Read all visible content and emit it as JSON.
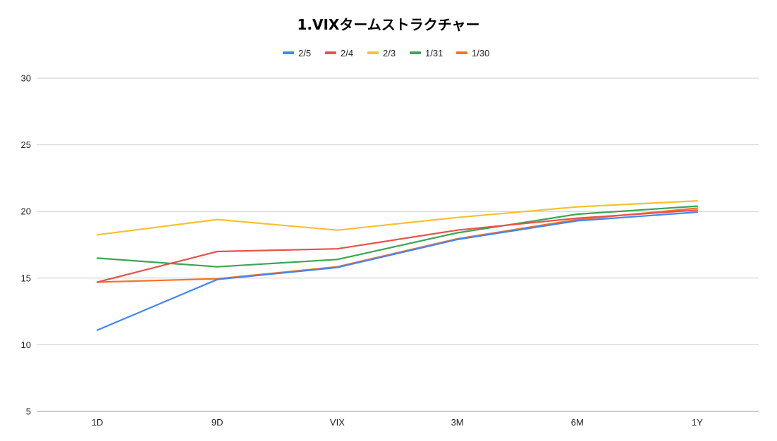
{
  "chart_data": {
    "type": "line",
    "title": "1.VIXタームストラクチャー",
    "xlabel": "",
    "ylabel": "",
    "categories": [
      "1D",
      "9D",
      "VIX",
      "3M",
      "6M",
      "1Y"
    ],
    "ylim": [
      5,
      30
    ],
    "yticks": [
      5,
      10,
      15,
      20,
      25,
      30
    ],
    "grid": true,
    "legend_position": "top-center",
    "series": [
      {
        "name": "2/5",
        "color": "#4285f4",
        "values": [
          11.1,
          14.9,
          15.8,
          17.9,
          19.3,
          19.95
        ]
      },
      {
        "name": "2/4",
        "color": "#e8524a",
        "values": [
          14.7,
          17.0,
          17.2,
          18.6,
          19.5,
          20.1
        ]
      },
      {
        "name": "2/3",
        "color": "#f6c130",
        "values": [
          18.25,
          19.4,
          18.6,
          19.55,
          20.35,
          20.8
        ]
      },
      {
        "name": "1/31",
        "color": "#3aa655",
        "values": [
          16.5,
          15.85,
          16.4,
          18.4,
          19.8,
          20.4
        ]
      },
      {
        "name": "1/30",
        "color": "#fa7024",
        "values": [
          14.7,
          14.95,
          15.85,
          17.95,
          19.4,
          20.25
        ]
      }
    ]
  }
}
